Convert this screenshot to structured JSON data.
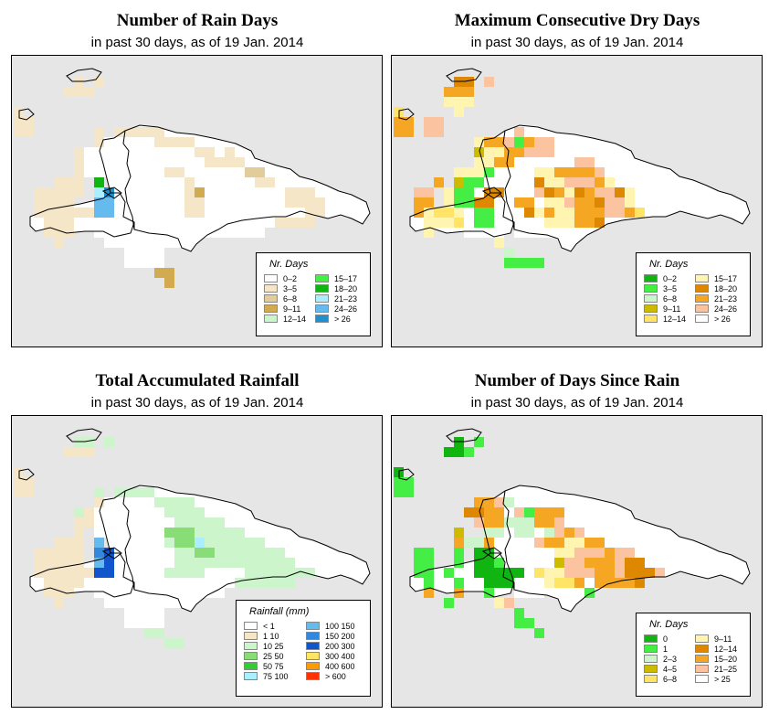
{
  "colors": {
    "background": "#e6e6e6",
    "land": "#ffffff",
    "border": "#000000"
  },
  "panels": [
    {
      "id": "rain_days",
      "title": "Number of Rain Days",
      "subtitle": "in past 30 days, as of  19 Jan. 2014",
      "legend": {
        "title": "Nr. Days",
        "items": [
          {
            "label": "0–2",
            "color": "#ffffff"
          },
          {
            "label": "3–5",
            "color": "#f5e6c8"
          },
          {
            "label": "6–8",
            "color": "#e2cc9a"
          },
          {
            "label": "9–11",
            "color": "#d2aa4f"
          },
          {
            "label": "12–14",
            "color": "#ccf5cc"
          },
          {
            "label": "15–17",
            "color": "#44ee44"
          },
          {
            "label": "18–20",
            "color": "#11b511"
          },
          {
            "label": "21–23",
            "color": "#aaeeff"
          },
          {
            "label": "24–26",
            "color": "#66bbee"
          },
          {
            "label": "> 26",
            "color": "#1e90d0"
          }
        ]
      }
    },
    {
      "id": "max_dry",
      "title": "Maximum Consecutive Dry Days",
      "subtitle": "in past 30 days, as of  19 Jan. 2014",
      "legend": {
        "title": "Nr. Days",
        "items": [
          {
            "label": "0–2",
            "color": "#11b511"
          },
          {
            "label": "3–5",
            "color": "#44ee44"
          },
          {
            "label": "6–8",
            "color": "#ccf5cc"
          },
          {
            "label": "9–11",
            "color": "#ccbb00"
          },
          {
            "label": "12–14",
            "color": "#ffe466"
          },
          {
            "label": "15–17",
            "color": "#fff5b0"
          },
          {
            "label": "18–20",
            "color": "#dd8800"
          },
          {
            "label": "21–23",
            "color": "#f5a623"
          },
          {
            "label": "24–26",
            "color": "#fbc3a0"
          },
          {
            "label": "> 26",
            "color": "#ffffff"
          }
        ]
      }
    },
    {
      "id": "rainfall",
      "title": "Total Accumulated Rainfall",
      "subtitle": "in past 30 days, as of  19 Jan. 2014",
      "legend": {
        "title": "Rainfall (mm)",
        "items": [
          {
            "label": "< 1",
            "color": "#ffffff"
          },
          {
            "label": "1      10",
            "color": "#f5e6c8"
          },
          {
            "label": "10    25",
            "color": "#ccf5cc"
          },
          {
            "label": "25    50",
            "color": "#88dd77"
          },
          {
            "label": "50    75",
            "color": "#33cc33"
          },
          {
            "label": "75    100",
            "color": "#aaeeff"
          },
          {
            "label": "100   150",
            "color": "#66bbee"
          },
          {
            "label": "150   200",
            "color": "#3388dd"
          },
          {
            "label": "200   300",
            "color": "#1155cc"
          },
          {
            "label": "300   400",
            "color": "#ffe466"
          },
          {
            "label": "400   600",
            "color": "#ff9900"
          },
          {
            "label": "> 600",
            "color": "#ff3300"
          }
        ]
      }
    },
    {
      "id": "since_rain",
      "title": "Number of Days Since Rain",
      "subtitle": "in past 30 days, as of  19 Jan. 2014",
      "legend": {
        "title": "Nr. Days",
        "items": [
          {
            "label": "0",
            "color": "#11b511"
          },
          {
            "label": "1",
            "color": "#44ee44"
          },
          {
            "label": "2–3",
            "color": "#ccf5cc"
          },
          {
            "label": "4–5",
            "color": "#ccbb00"
          },
          {
            "label": "6–8",
            "color": "#ffe466"
          },
          {
            "label": "9–11",
            "color": "#fff5b0"
          },
          {
            "label": "12–14",
            "color": "#dd8800"
          },
          {
            "label": "15–20",
            "color": "#f5a623"
          },
          {
            "label": "21–25",
            "color": "#fbc3a0"
          },
          {
            "label": "> 25",
            "color": "#ffffff"
          }
        ]
      }
    }
  ]
}
